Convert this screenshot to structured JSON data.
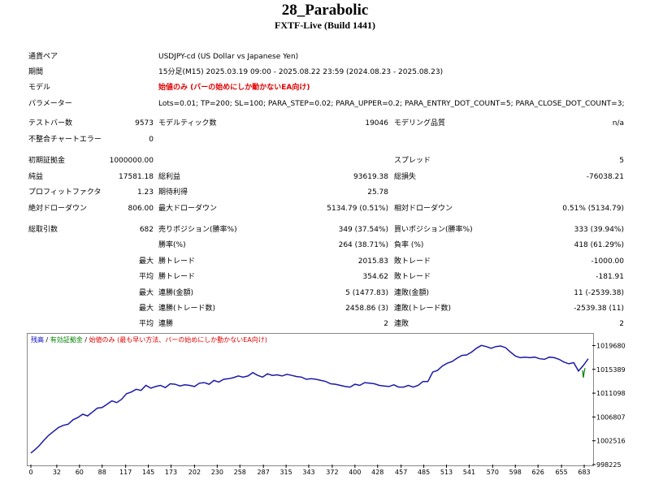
{
  "header": {
    "title": "28_Parabolic",
    "subtitle": "FXTF-Live (Build 1441)"
  },
  "settings": [
    {
      "label": "通貨ペア",
      "value": "USDJPY-cd (US Dollar vs Japanese Yen)"
    },
    {
      "label": "期間",
      "value": "15分足(M15) 2025.03.19 09:00 - 2025.08.22 23:59 (2024.08.23 - 2025.08.23)"
    },
    {
      "label": "モデル",
      "value": "始値のみ (バーの始めにしか動かないEA向け)"
    },
    {
      "label": "パラメーター",
      "value": "Lots=0.01; TP=200; SL=100; PARA_STEP=0.02; PARA_UPPER=0.2; PARA_ENTRY_DOT_COUNT=5; PARA_CLOSE_DOT_COUNT=3;"
    }
  ],
  "stats": {
    "test_bars": {
      "label": "テストバー数",
      "value": "9573"
    },
    "model_ticks": {
      "label": "モデルティック数",
      "value": "19046"
    },
    "model_quality": {
      "label": "モデリング品質",
      "value": "n/a"
    },
    "mismatch": {
      "label": "不整合チャートエラー",
      "value": "0"
    },
    "initial_deposit": {
      "label": "初期証拠金",
      "value": "1000000.00"
    },
    "spread": {
      "label": "スプレッド",
      "value": "5"
    },
    "net_profit": {
      "label": "純益",
      "value": "17581.18"
    },
    "gross_profit": {
      "label": "総利益",
      "value": "93619.38"
    },
    "gross_loss": {
      "label": "総損失",
      "value": "-76038.21"
    },
    "profit_factor": {
      "label": "プロフィットファクタ",
      "value": "1.23"
    },
    "expected_payoff": {
      "label": "期待利得",
      "value": "25.78"
    },
    "abs_drawdown": {
      "label": "絶対ドローダウン",
      "value": "806.00"
    },
    "max_drawdown": {
      "label": "最大ドローダウン",
      "value": "5134.79 (0.51%)"
    },
    "rel_drawdown": {
      "label": "相対ドローダウン",
      "value": "0.51% (5134.79)"
    },
    "total_trades": {
      "label": "総取引数",
      "value": "682"
    },
    "short_positions": {
      "label": "売りポジション(勝率%)",
      "value": "349 (37.54%)"
    },
    "long_positions": {
      "label": "買いポジション(勝率%)",
      "value": "333 (39.94%)"
    },
    "win_rate": {
      "label": "勝率(%)",
      "value": "264 (38.71%)"
    },
    "loss_rate": {
      "label": "負率 (%)",
      "value": "418 (61.29%)"
    },
    "largest_win": {
      "prefix": "最大",
      "label": "勝トレード",
      "value": "2015.83"
    },
    "largest_loss": {
      "label": "敗トレード",
      "value": "-1000.00"
    },
    "avg_win": {
      "prefix": "平均",
      "label": "勝トレード",
      "value": "354.62"
    },
    "avg_loss": {
      "label": "敗トレード",
      "value": "-181.91"
    },
    "max_consec_wins": {
      "prefix": "最大",
      "label": "連勝(金額)",
      "value": "5 (1477.83)"
    },
    "max_consec_losses": {
      "label": "連敗(金額)",
      "value": "11 (-2539.38)"
    },
    "max_consec_profit": {
      "prefix": "最大",
      "label": "連勝(トレード数)",
      "value": "2458.86 (3)"
    },
    "max_consec_loss": {
      "label": "連敗(トレード数)",
      "value": "-2539.38 (11)"
    },
    "avg_consec_wins": {
      "prefix": "平均",
      "label": "連勝",
      "value": "2"
    },
    "avg_consec_losses": {
      "label": "連敗",
      "value": "2"
    }
  },
  "legend": {
    "balance": "残高",
    "sep1": " / ",
    "equity": "有効証拠金",
    "sep2": " / ",
    "model": "始値のみ (最も早い方法、バーの始めにしか動かないEA向け)",
    "colors": {
      "balance": "#0000c8",
      "equity": "#008000",
      "model": "#e00000"
    }
  },
  "chart_data": {
    "type": "line",
    "xlabel": "",
    "ylabel": "",
    "x_ticks": [
      0,
      32,
      60,
      88,
      117,
      145,
      173,
      202,
      230,
      258,
      287,
      315,
      343,
      372,
      400,
      428,
      457,
      485,
      513,
      541,
      570,
      598,
      626,
      655,
      683
    ],
    "y_ticks": [
      998225,
      1002516,
      1006807,
      1011098,
      1015389,
      1019680
    ],
    "xlim": [
      0,
      690
    ],
    "ylim": [
      998225,
      1021800
    ],
    "series": [
      {
        "color": "#1a1aa8",
        "x": [
          0,
          5,
          10,
          16,
          22,
          28,
          34,
          40,
          46,
          52,
          58,
          64,
          70,
          76,
          82,
          88,
          94,
          100,
          106,
          112,
          118,
          124,
          130,
          136,
          142,
          148,
          154,
          160,
          166,
          172,
          178,
          184,
          190,
          196,
          202,
          208,
          214,
          220,
          226,
          232,
          238,
          244,
          250,
          256,
          262,
          268,
          274,
          280,
          286,
          292,
          298,
          304,
          310,
          316,
          322,
          328,
          334,
          340,
          346,
          352,
          358,
          364,
          370,
          376,
          382,
          388,
          394,
          400,
          406,
          412,
          418,
          424,
          430,
          436,
          442,
          448,
          454,
          460,
          466,
          472,
          478,
          484,
          490,
          496,
          502,
          508,
          514,
          520,
          526,
          532,
          538,
          544,
          550,
          556,
          562,
          568,
          574,
          580,
          586,
          592,
          598,
          604,
          610,
          616,
          622,
          628,
          634,
          640,
          646,
          652,
          658,
          664,
          670,
          676,
          682,
          688
        ],
        "y": [
          1000300,
          1000900,
          1001600,
          1002600,
          1003500,
          1004200,
          1004900,
          1005300,
          1005500,
          1006300,
          1006700,
          1007300,
          1007000,
          1007700,
          1008400,
          1008500,
          1009100,
          1009700,
          1009400,
          1010000,
          1011000,
          1011300,
          1011800,
          1011600,
          1012500,
          1012000,
          1012300,
          1012500,
          1012100,
          1012800,
          1012700,
          1012400,
          1012600,
          1012500,
          1012300,
          1012900,
          1013000,
          1012700,
          1013400,
          1013100,
          1013600,
          1013700,
          1013900,
          1014200,
          1014000,
          1014200,
          1014800,
          1014300,
          1014000,
          1014600,
          1014300,
          1014400,
          1014200,
          1014500,
          1014300,
          1014100,
          1014000,
          1013600,
          1013700,
          1013600,
          1013400,
          1013200,
          1012800,
          1012700,
          1012500,
          1012300,
          1012200,
          1012700,
          1012500,
          1013000,
          1012900,
          1012800,
          1012500,
          1012400,
          1012300,
          1012600,
          1012200,
          1012200,
          1012500,
          1012200,
          1012500,
          1013200,
          1013200,
          1014900,
          1015200,
          1016000,
          1016500,
          1016800,
          1017400,
          1017900,
          1018000,
          1018500,
          1019200,
          1019700,
          1019500,
          1019200,
          1019500,
          1019600,
          1019300,
          1018500,
          1017800,
          1017500,
          1017600,
          1017500,
          1017600,
          1017300,
          1017200,
          1017600,
          1017500,
          1017200,
          1016700,
          1016400,
          1016600,
          1015100,
          1016100,
          1017300
        ]
      },
      {
        "color": "#008000",
        "x": [
          681,
          682,
          683,
          684
        ],
        "y": [
          1015200,
          1013900,
          1014900,
          1015600
        ]
      }
    ]
  }
}
